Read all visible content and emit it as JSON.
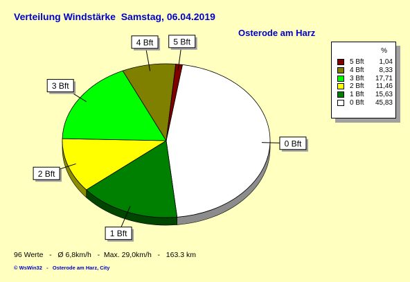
{
  "header": {
    "title": "Verteilung Windstärke  Samstag, 06.04.2019",
    "location": "Osterode am Harz"
  },
  "chart_data": {
    "type": "pie",
    "title": "Verteilung Windstärke  Samstag, 06.04.2019",
    "subtitle": "Osterode am Harz",
    "legend_unit": "%",
    "legend_position": "top-right",
    "categories": [
      "0 Bft",
      "1 Bft",
      "2 Bft",
      "3 Bft",
      "4 Bft",
      "5 Bft"
    ],
    "values": [
      45.83,
      15.63,
      11.46,
      17.71,
      8.33,
      1.04
    ],
    "value_labels": [
      "45,83",
      "15,63",
      "11,46",
      "17,71",
      "8,33",
      "1,04"
    ],
    "colors": [
      "#ffffff",
      "#008000",
      "#ffff00",
      "#00ff00",
      "#808000",
      "#800000"
    ],
    "legend_order": [
      "5 Bft",
      "4 Bft",
      "3 Bft",
      "2 Bft",
      "1 Bft",
      "0 Bft"
    ]
  },
  "footer": {
    "stats": "96 Werte   -   Ø 6,8km/h   -  Max. 29,0km/h   -   163.3 km",
    "copyright": "© WsWin32   -   Osterode am Harz, City"
  }
}
